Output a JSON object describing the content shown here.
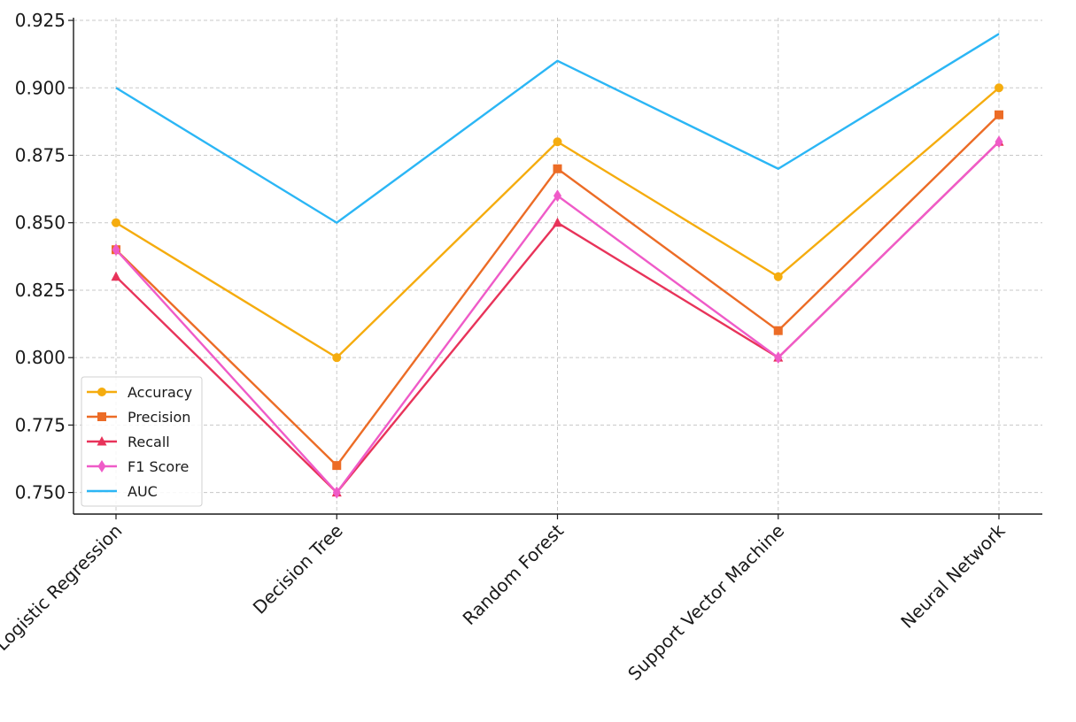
{
  "chart_data": {
    "type": "line",
    "title": "",
    "xlabel": "",
    "ylabel": "",
    "categories": [
      "Logistic Regression",
      "Decision Tree",
      "Random Forest",
      "Support Vector Machine",
      "Neural Network"
    ],
    "ylim": [
      0.742,
      0.926
    ],
    "yticks": [
      "0.750",
      "0.775",
      "0.800",
      "0.825",
      "0.850",
      "0.875",
      "0.900",
      "0.925"
    ],
    "grid": true,
    "legend_position": "lower-left",
    "series": [
      {
        "name": "Accuracy",
        "values": [
          0.85,
          0.8,
          0.88,
          0.83,
          0.9
        ],
        "color": "#f5ac0e",
        "marker": "circle"
      },
      {
        "name": "Precision",
        "values": [
          0.84,
          0.76,
          0.87,
          0.81,
          0.89
        ],
        "color": "#ec6c26",
        "marker": "square"
      },
      {
        "name": "Recall",
        "values": [
          0.83,
          0.75,
          0.85,
          0.8,
          0.88
        ],
        "color": "#e8335a",
        "marker": "triangle"
      },
      {
        "name": "F1 Score",
        "values": [
          0.84,
          0.75,
          0.86,
          0.8,
          0.88
        ],
        "color": "#ef5bc8",
        "marker": "diamond"
      },
      {
        "name": "AUC",
        "values": [
          0.9,
          0.85,
          0.91,
          0.87,
          0.92
        ],
        "color": "#2bb6f5",
        "marker": "none"
      }
    ]
  }
}
